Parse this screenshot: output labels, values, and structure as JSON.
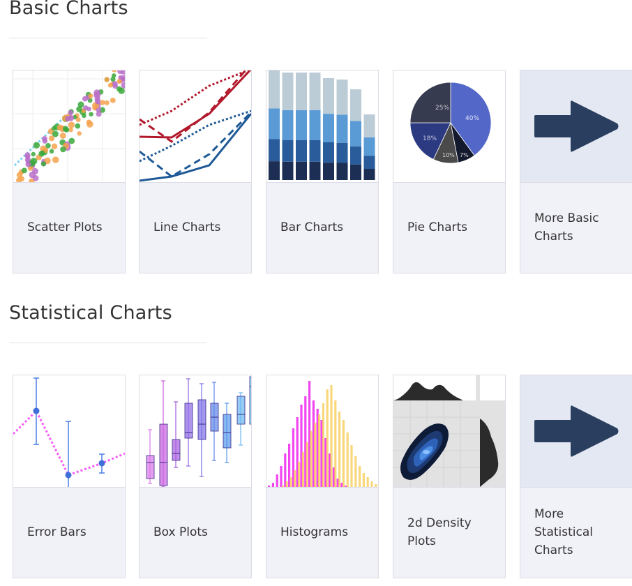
{
  "basic": {
    "title": "Basic Charts",
    "cards": [
      {
        "label": "Scatter Plots"
      },
      {
        "label": "Line Charts"
      },
      {
        "label": "Bar Charts"
      },
      {
        "label": "Pie Charts",
        "pie_labels": [
          "25%",
          "40%",
          "18%",
          "10%",
          "7%"
        ]
      },
      {
        "label": "More Basic Charts"
      }
    ]
  },
  "statistical": {
    "title": "Statistical Charts",
    "cards": [
      {
        "label": "Error Bars"
      },
      {
        "label": "Box Plots"
      },
      {
        "label": "Histograms"
      },
      {
        "label": "2d Density Plots"
      },
      {
        "label": "More Statistical Charts"
      }
    ]
  },
  "icons": [
    "scatter-thumbnail-icon",
    "line-thumbnail-icon",
    "bar-thumbnail-icon",
    "pie-thumbnail-icon",
    "arrow-right-icon",
    "error-bars-thumbnail-icon",
    "box-plot-thumbnail-icon",
    "histogram-thumbnail-icon",
    "density-thumbnail-icon"
  ],
  "colors": {
    "arrow": "#2a3f5f",
    "card_bg": "#f1f1f8",
    "arrow_bg": "#e4e8f3"
  }
}
